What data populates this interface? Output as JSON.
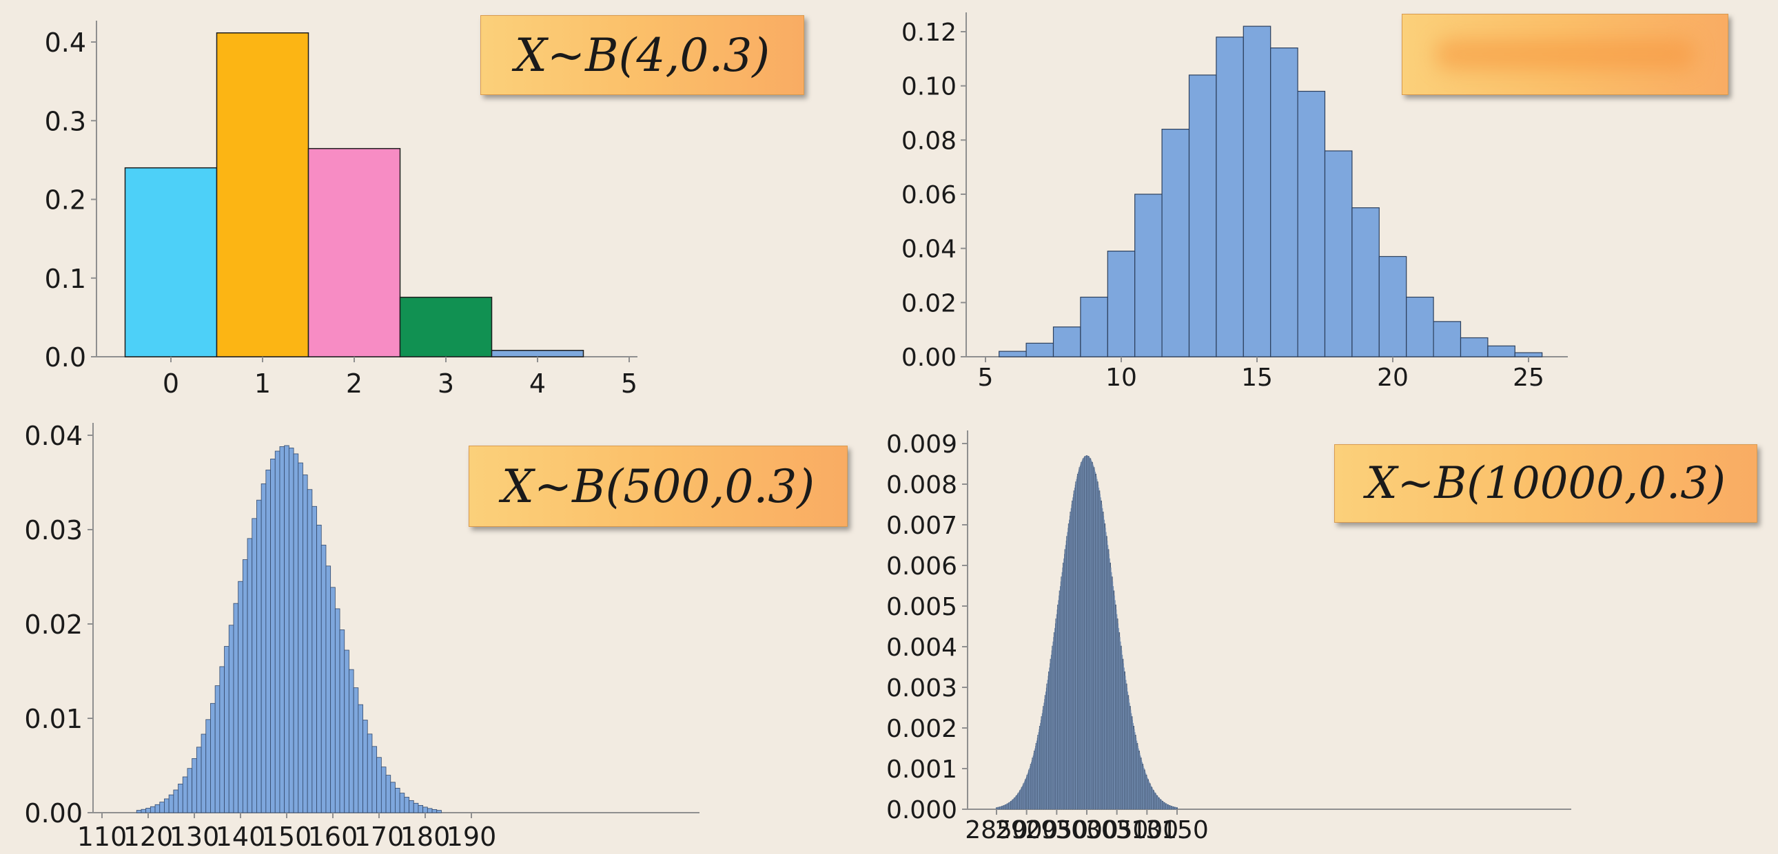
{
  "chart_data": [
    {
      "id": "b4",
      "type": "bar",
      "title": "X~B(4,0.3)",
      "categories": [
        "0",
        "1",
        "2",
        "3",
        "4"
      ],
      "values": [
        0.2401,
        0.4116,
        0.2646,
        0.0756,
        0.0081
      ],
      "bar_colors": [
        "#4dd0f8",
        "#fcb514",
        "#f78cc4",
        "#119152",
        "#7ea9de"
      ],
      "x_ticks": [
        "0",
        "1",
        "2",
        "3",
        "4",
        "5"
      ],
      "y_ticks": [
        "0.0",
        "0.1",
        "0.2",
        "0.3",
        "0.4"
      ],
      "ylim": [
        0,
        0.42
      ],
      "grid": false
    },
    {
      "id": "b50",
      "type": "bar",
      "title": "",
      "x": [
        6,
        7,
        8,
        9,
        10,
        11,
        12,
        13,
        14,
        15,
        16,
        17,
        18,
        19,
        20,
        21,
        22,
        23,
        24,
        25
      ],
      "values": [
        0.002,
        0.005,
        0.011,
        0.022,
        0.039,
        0.06,
        0.084,
        0.104,
        0.118,
        0.122,
        0.114,
        0.098,
        0.076,
        0.055,
        0.037,
        0.022,
        0.013,
        0.007,
        0.004,
        0.0015
      ],
      "bar_color": "#7ea7dd",
      "x_ticks": [
        "5",
        "10",
        "15",
        "20",
        "25"
      ],
      "y_ticks": [
        "0.00",
        "0.02",
        "0.04",
        "0.06",
        "0.08",
        "0.10",
        "0.12"
      ],
      "xlim": [
        5,
        26
      ],
      "ylim": [
        0,
        0.13
      ],
      "grid": false
    },
    {
      "id": "b500",
      "type": "bar",
      "title": "X~B(500,0.3)",
      "x_range": [
        118,
        183
      ],
      "mean": 150,
      "std": 10.25,
      "bar_color": "#7ea7dd",
      "x_ticks": [
        "110",
        "120",
        "130",
        "140",
        "150",
        "160",
        "170",
        "180",
        "190"
      ],
      "y_ticks": [
        "0.00",
        "0.01",
        "0.02",
        "0.03",
        "0.04"
      ],
      "xlim": [
        110,
        190
      ],
      "ylim": [
        0,
        0.04
      ],
      "grid": false
    },
    {
      "id": "b10000",
      "type": "bar",
      "title": "X~B(10000,0.3)",
      "x_range": [
        2850,
        3150
      ],
      "mean": 3000,
      "std": 45.83,
      "bar_color": "#6f88ab",
      "x_ticks": [
        "2850",
        "2900",
        "2950",
        "3000",
        "3050",
        "3100",
        "3150"
      ],
      "y_ticks": [
        "0.000",
        "0.001",
        "0.002",
        "0.003",
        "0.004",
        "0.005",
        "0.006",
        "0.007",
        "0.008",
        "0.009"
      ],
      "xlim": [
        2840,
        3160
      ],
      "ylim": [
        0,
        0.009
      ],
      "grid": false
    }
  ]
}
